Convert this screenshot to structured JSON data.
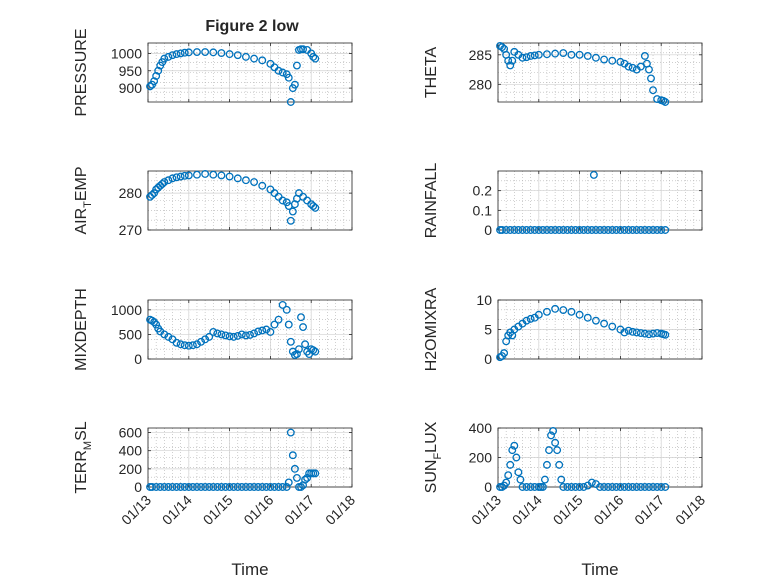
{
  "figure": {
    "title": "Figure 2 low",
    "marker_color": "#0072BD",
    "grid_color": "#b0b0b0",
    "axes_color": "#262626"
  },
  "chart_data": [
    {
      "type": "scatter",
      "id": "pressure",
      "ylabel": "PRESSURE",
      "grid": true,
      "xlim": [
        13,
        18
      ],
      "ylim": [
        860,
        1030
      ],
      "yticks": [
        900,
        950,
        1000
      ],
      "xticklabels_visible": false,
      "x": [
        13.05,
        13.1,
        13.15,
        13.2,
        13.25,
        13.3,
        13.35,
        13.4,
        13.5,
        13.6,
        13.7,
        13.8,
        13.9,
        14.0,
        14.2,
        14.4,
        14.6,
        14.8,
        15.0,
        15.2,
        15.4,
        15.6,
        15.8,
        16.0,
        16.1,
        16.2,
        16.3,
        16.4,
        16.45,
        16.5,
        16.55,
        16.6,
        16.65,
        16.7,
        16.75,
        16.8,
        16.9,
        17.0,
        17.05,
        17.1
      ],
      "y": [
        905,
        910,
        920,
        935,
        950,
        965,
        975,
        985,
        990,
        995,
        998,
        1000,
        1002,
        1003,
        1004,
        1004,
        1003,
        1001,
        998,
        995,
        990,
        985,
        980,
        970,
        960,
        950,
        945,
        940,
        930,
        860,
        900,
        910,
        965,
        1010,
        1012,
        1012,
        1010,
        1000,
        990,
        985
      ]
    },
    {
      "type": "scatter",
      "id": "theta",
      "ylabel": "THETA",
      "grid": true,
      "xlim": [
        13,
        18
      ],
      "ylim": [
        277,
        287
      ],
      "yticks": [
        280,
        285
      ],
      "xticklabels_visible": false,
      "x": [
        13.05,
        13.1,
        13.15,
        13.2,
        13.25,
        13.3,
        13.35,
        13.4,
        13.5,
        13.6,
        13.7,
        13.8,
        13.9,
        14.0,
        14.2,
        14.4,
        14.6,
        14.8,
        15.0,
        15.2,
        15.4,
        15.6,
        15.8,
        16.0,
        16.1,
        16.2,
        16.3,
        16.4,
        16.5,
        16.6,
        16.65,
        16.7,
        16.75,
        16.8,
        16.9,
        17.0,
        17.05,
        17.1
      ],
      "y": [
        286.5,
        286.3,
        286.0,
        285.0,
        284.0,
        283.2,
        284.0,
        285.5,
        285.0,
        284.5,
        284.6,
        284.8,
        284.9,
        285.0,
        285.1,
        285.2,
        285.3,
        285.0,
        285.0,
        284.8,
        284.5,
        284.2,
        284.0,
        283.8,
        283.5,
        283.0,
        282.8,
        282.5,
        283.0,
        284.8,
        283.5,
        282.5,
        281.0,
        279.0,
        277.5,
        277.3,
        277.2,
        277.0
      ]
    },
    {
      "type": "scatter",
      "id": "air_temp",
      "ylabel_parts": [
        "AIR",
        "T",
        "EMP"
      ],
      "grid": true,
      "xlim": [
        13,
        18
      ],
      "ylim": [
        270,
        286
      ],
      "yticks": [
        270,
        280
      ],
      "xticklabels_visible": false,
      "x": [
        13.05,
        13.1,
        13.15,
        13.2,
        13.25,
        13.3,
        13.35,
        13.4,
        13.5,
        13.6,
        13.7,
        13.8,
        13.9,
        14.0,
        14.2,
        14.4,
        14.6,
        14.8,
        15.0,
        15.2,
        15.4,
        15.6,
        15.8,
        16.0,
        16.1,
        16.2,
        16.3,
        16.4,
        16.45,
        16.5,
        16.55,
        16.6,
        16.65,
        16.7,
        16.8,
        16.9,
        17.0,
        17.05,
        17.1
      ],
      "y": [
        279.0,
        279.5,
        280.0,
        281.0,
        281.5,
        282.0,
        282.5,
        283.0,
        283.5,
        284.0,
        284.3,
        284.5,
        284.7,
        284.8,
        285.0,
        285.2,
        285.0,
        284.8,
        284.5,
        284.0,
        283.5,
        283.0,
        282.0,
        281.0,
        280.0,
        279.0,
        278.0,
        277.5,
        276.5,
        272.5,
        275.0,
        277.0,
        278.5,
        280.0,
        279.0,
        278.0,
        277.0,
        276.5,
        276.0
      ]
    },
    {
      "type": "scatter",
      "id": "rainfall",
      "ylabel": "RAINFALL",
      "grid": true,
      "xlim": [
        13,
        18
      ],
      "ylim": [
        0,
        0.3
      ],
      "yticks": [
        0,
        0.1,
        0.2
      ],
      "yticklabels": [
        "0",
        "0.1",
        "0.2"
      ],
      "xticklabels_visible": false,
      "x": [
        13.05,
        13.1,
        13.2,
        13.3,
        13.4,
        13.5,
        13.6,
        13.7,
        13.8,
        13.9,
        14.0,
        14.1,
        14.2,
        14.3,
        14.4,
        14.5,
        14.6,
        14.7,
        14.8,
        14.9,
        15.0,
        15.1,
        15.2,
        15.3,
        15.4,
        15.5,
        15.6,
        15.7,
        15.8,
        15.9,
        16.0,
        16.1,
        16.2,
        16.3,
        16.4,
        16.5,
        16.6,
        16.7,
        16.8,
        16.9,
        17.0,
        17.1,
        15.35
      ],
      "y": [
        0,
        0,
        0,
        0,
        0,
        0,
        0,
        0,
        0,
        0,
        0,
        0,
        0,
        0,
        0,
        0,
        0,
        0,
        0,
        0,
        0,
        0,
        0,
        0,
        0,
        0,
        0,
        0,
        0,
        0,
        0,
        0,
        0,
        0,
        0,
        0,
        0,
        0,
        0,
        0,
        0,
        0,
        0.28
      ]
    },
    {
      "type": "scatter",
      "id": "mixdepth",
      "ylabel": "MIXDEPTH",
      "grid": true,
      "xlim": [
        13,
        18
      ],
      "ylim": [
        0,
        1200
      ],
      "yticks": [
        0,
        500,
        1000
      ],
      "xticklabels_visible": false,
      "x": [
        13.05,
        13.1,
        13.15,
        13.2,
        13.25,
        13.3,
        13.4,
        13.5,
        13.6,
        13.7,
        13.8,
        13.9,
        14.0,
        14.1,
        14.2,
        14.3,
        14.4,
        14.5,
        14.6,
        14.7,
        14.8,
        14.9,
        15.0,
        15.1,
        15.2,
        15.3,
        15.4,
        15.5,
        15.6,
        15.7,
        15.8,
        15.9,
        16.0,
        16.1,
        16.2,
        16.3,
        16.4,
        16.45,
        16.5,
        16.55,
        16.6,
        16.65,
        16.7,
        16.75,
        16.8,
        16.85,
        16.9,
        16.95,
        17.0,
        17.05,
        17.1
      ],
      "y": [
        800,
        780,
        750,
        700,
        620,
        560,
        500,
        450,
        400,
        330,
        300,
        280,
        270,
        280,
        300,
        350,
        400,
        450,
        550,
        520,
        500,
        480,
        460,
        450,
        470,
        500,
        480,
        490,
        520,
        560,
        580,
        600,
        550,
        700,
        800,
        1100,
        1000,
        700,
        350,
        150,
        80,
        100,
        200,
        850,
        650,
        300,
        150,
        100,
        200,
        180,
        150
      ]
    },
    {
      "type": "scatter",
      "id": "h2omixra",
      "ylabel": "H2OMIXRA",
      "grid": true,
      "xlim": [
        13,
        18
      ],
      "ylim": [
        0,
        10
      ],
      "yticks": [
        0,
        5,
        10
      ],
      "xticklabels_visible": false,
      "x": [
        13.05,
        13.1,
        13.15,
        13.2,
        13.25,
        13.3,
        13.35,
        13.4,
        13.5,
        13.6,
        13.7,
        13.8,
        13.9,
        14.0,
        14.2,
        14.4,
        14.6,
        14.8,
        15.0,
        15.2,
        15.4,
        15.6,
        15.8,
        16.0,
        16.1,
        16.2,
        16.3,
        16.4,
        16.5,
        16.6,
        16.7,
        16.8,
        16.9,
        17.0,
        17.05,
        17.1
      ],
      "y": [
        0.3,
        0.5,
        1.0,
        3.0,
        4.0,
        4.5,
        4.0,
        5.0,
        5.5,
        6.0,
        6.5,
        6.8,
        7.0,
        7.5,
        8.0,
        8.5,
        8.3,
        8.0,
        7.5,
        7.0,
        6.5,
        6.0,
        5.5,
        5.0,
        4.5,
        4.8,
        4.6,
        4.5,
        4.4,
        4.3,
        4.2,
        4.3,
        4.4,
        4.3,
        4.2,
        4.1
      ]
    },
    {
      "type": "scatter",
      "id": "terr_msl",
      "ylabel_parts": [
        "TERR",
        "M",
        "SL"
      ],
      "grid": true,
      "xlim": [
        13,
        18
      ],
      "ylim": [
        0,
        650
      ],
      "yticks": [
        0,
        200,
        400,
        600
      ],
      "xticklabels_visible": true,
      "xticks": [
        13,
        14,
        15,
        16,
        17,
        18
      ],
      "xticklabels": [
        "01/13",
        "01/14",
        "01/15",
        "01/16",
        "01/17",
        "01/18"
      ],
      "xlabel": "Time",
      "x": [
        13.05,
        13.1,
        13.2,
        13.3,
        13.4,
        13.5,
        13.6,
        13.7,
        13.8,
        13.9,
        14.0,
        14.1,
        14.2,
        14.3,
        14.4,
        14.5,
        14.6,
        14.7,
        14.8,
        14.9,
        15.0,
        15.1,
        15.2,
        15.3,
        15.4,
        15.5,
        15.6,
        15.7,
        15.8,
        15.9,
        16.0,
        16.1,
        16.2,
        16.3,
        16.4,
        16.45,
        16.5,
        16.55,
        16.6,
        16.65,
        16.7,
        16.75,
        16.8,
        16.85,
        16.9,
        16.95,
        17.0,
        17.05,
        17.1
      ],
      "y": [
        0,
        0,
        0,
        0,
        0,
        0,
        0,
        0,
        0,
        0,
        0,
        0,
        0,
        0,
        0,
        0,
        0,
        0,
        0,
        0,
        0,
        0,
        0,
        0,
        0,
        0,
        0,
        0,
        0,
        0,
        0,
        0,
        0,
        0,
        0,
        50,
        600,
        350,
        200,
        100,
        0,
        0,
        20,
        80,
        100,
        150,
        150,
        150,
        150
      ]
    },
    {
      "type": "scatter",
      "id": "sun_flux",
      "ylabel_parts": [
        "SUN",
        "F",
        "LUX"
      ],
      "grid": true,
      "xlim": [
        13,
        18
      ],
      "ylim": [
        0,
        400
      ],
      "yticks": [
        0,
        200,
        400
      ],
      "xticklabels_visible": true,
      "xticks": [
        13,
        14,
        15,
        16,
        17,
        18
      ],
      "xticklabels": [
        "01/13",
        "01/14",
        "01/15",
        "01/16",
        "01/17",
        "01/18"
      ],
      "xlabel": "Time",
      "x": [
        13.05,
        13.1,
        13.15,
        13.2,
        13.25,
        13.3,
        13.35,
        13.4,
        13.45,
        13.5,
        13.55,
        13.6,
        13.7,
        13.8,
        13.9,
        14.0,
        14.05,
        14.1,
        14.15,
        14.2,
        14.25,
        14.3,
        14.35,
        14.4,
        14.45,
        14.5,
        14.55,
        14.6,
        14.7,
        14.8,
        14.9,
        15.0,
        15.1,
        15.2,
        15.3,
        15.4,
        15.5,
        15.6,
        15.7,
        15.8,
        15.9,
        16.0,
        16.1,
        16.2,
        16.3,
        16.4,
        16.5,
        16.6,
        16.7,
        16.8,
        16.9,
        17.0,
        17.1
      ],
      "y": [
        0,
        0,
        10,
        30,
        80,
        150,
        250,
        280,
        200,
        100,
        50,
        0,
        0,
        0,
        0,
        0,
        0,
        0,
        50,
        150,
        250,
        350,
        380,
        300,
        250,
        150,
        50,
        0,
        0,
        0,
        0,
        0,
        0,
        10,
        30,
        20,
        0,
        0,
        0,
        0,
        0,
        0,
        0,
        0,
        0,
        0,
        0,
        0,
        0,
        0,
        0,
        0,
        0
      ]
    }
  ]
}
